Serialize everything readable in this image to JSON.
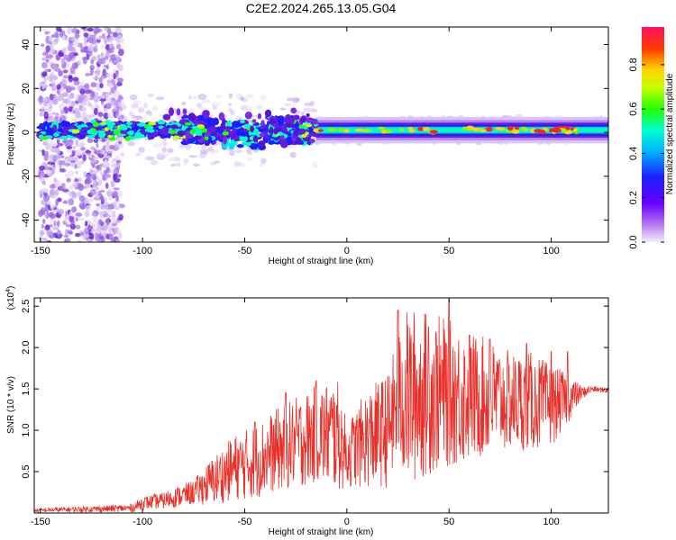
{
  "title": "C2E2.2024.265.13.05.G04",
  "colors": {
    "snr_line": "#e8302a",
    "axis": "#000000",
    "background": "#ffffff"
  },
  "chart_data": [
    {
      "type": "heatmap",
      "xlabel": "Height of straight line (km)",
      "ylabel": "Frequency (Hz)",
      "xlim": [
        -153,
        128
      ],
      "ylim": [
        -50,
        48
      ],
      "xticks": [
        -150,
        -100,
        -50,
        0,
        50,
        100
      ],
      "xtick_labels": [
        "-150",
        "-100",
        "-50",
        "0",
        "50",
        "100"
      ],
      "yticks": [
        -40,
        -20,
        0,
        20,
        40
      ],
      "ytick_labels": [
        "-40",
        "-20",
        "0",
        "20",
        "40"
      ],
      "colorbar": {
        "label": "Normalized spectral amplitude",
        "range": [
          0,
          0.97
        ],
        "ticks": [
          0,
          0.2,
          0.4,
          0.6,
          0.8
        ],
        "tick_labels": [
          "0.0",
          "0.2",
          "0.4",
          "0.6",
          "0.8"
        ],
        "colormap": "rainbow"
      },
      "band": {
        "center_hz": 1,
        "half_width_hz": 3,
        "note": "dominant energy near 0-3 Hz across all heights; strongest (red) between -15 km and 110 km"
      }
    },
    {
      "type": "line",
      "xlabel": "Height of straight line (km)",
      "ylabel": "SNR (10 * v/v)",
      "multiplier_label": "(x10",
      "multiplier_exp": "4",
      "multiplier_close": ")",
      "xlim": [
        -153,
        128
      ],
      "ylim": [
        0,
        2.6
      ],
      "xticks": [
        -150,
        -100,
        -50,
        0,
        50,
        100
      ],
      "xtick_labels": [
        "-150",
        "-100",
        "-50",
        "0",
        "50",
        "100"
      ],
      "yticks": [
        0.5,
        1.0,
        1.5,
        2.0,
        2.5
      ],
      "ytick_labels": [
        "0.5",
        "1.0",
        "1.5",
        "2.0",
        "2.5"
      ],
      "series": [
        {
          "x": [
            -153,
            -140,
            -120,
            -105,
            -100,
            -90,
            -75,
            -65,
            -55,
            -45,
            -35,
            -25,
            -15,
            -5,
            0,
            10,
            20,
            25,
            30,
            40,
            50,
            60,
            70,
            80,
            90,
            100,
            110,
            115,
            120,
            128
          ],
          "y": [
            0.03,
            0.04,
            0.05,
            0.06,
            0.12,
            0.15,
            0.25,
            0.4,
            0.55,
            0.62,
            0.75,
            0.85,
            0.95,
            0.95,
            0.7,
            0.9,
            1.0,
            1.35,
            1.4,
            1.45,
            1.45,
            1.4,
            1.4,
            1.35,
            1.35,
            1.3,
            1.4,
            1.45,
            1.5,
            1.48
          ],
          "amplitude": [
            0.02,
            0.03,
            0.04,
            0.05,
            0.08,
            0.1,
            0.15,
            0.3,
            0.4,
            0.45,
            0.5,
            0.55,
            0.6,
            0.7,
            0.4,
            0.6,
            0.7,
            0.8,
            1.1,
            1.0,
            0.9,
            0.8,
            0.7,
            0.6,
            0.6,
            0.5,
            0.25,
            0.08,
            0.04,
            0.03
          ],
          "peaks": [
            [
              -45,
              1.1
            ],
            [
              -30,
              1.45
            ],
            [
              -15,
              1.6
            ],
            [
              -5,
              1.3
            ],
            [
              25,
              2.45
            ],
            [
              40,
              2.25
            ],
            [
              50,
              2.58
            ],
            [
              60,
              2.15
            ],
            [
              70,
              2.1
            ],
            [
              88,
              2.05
            ],
            [
              100,
              1.95
            ],
            [
              108,
              1.95
            ]
          ]
        }
      ]
    }
  ]
}
